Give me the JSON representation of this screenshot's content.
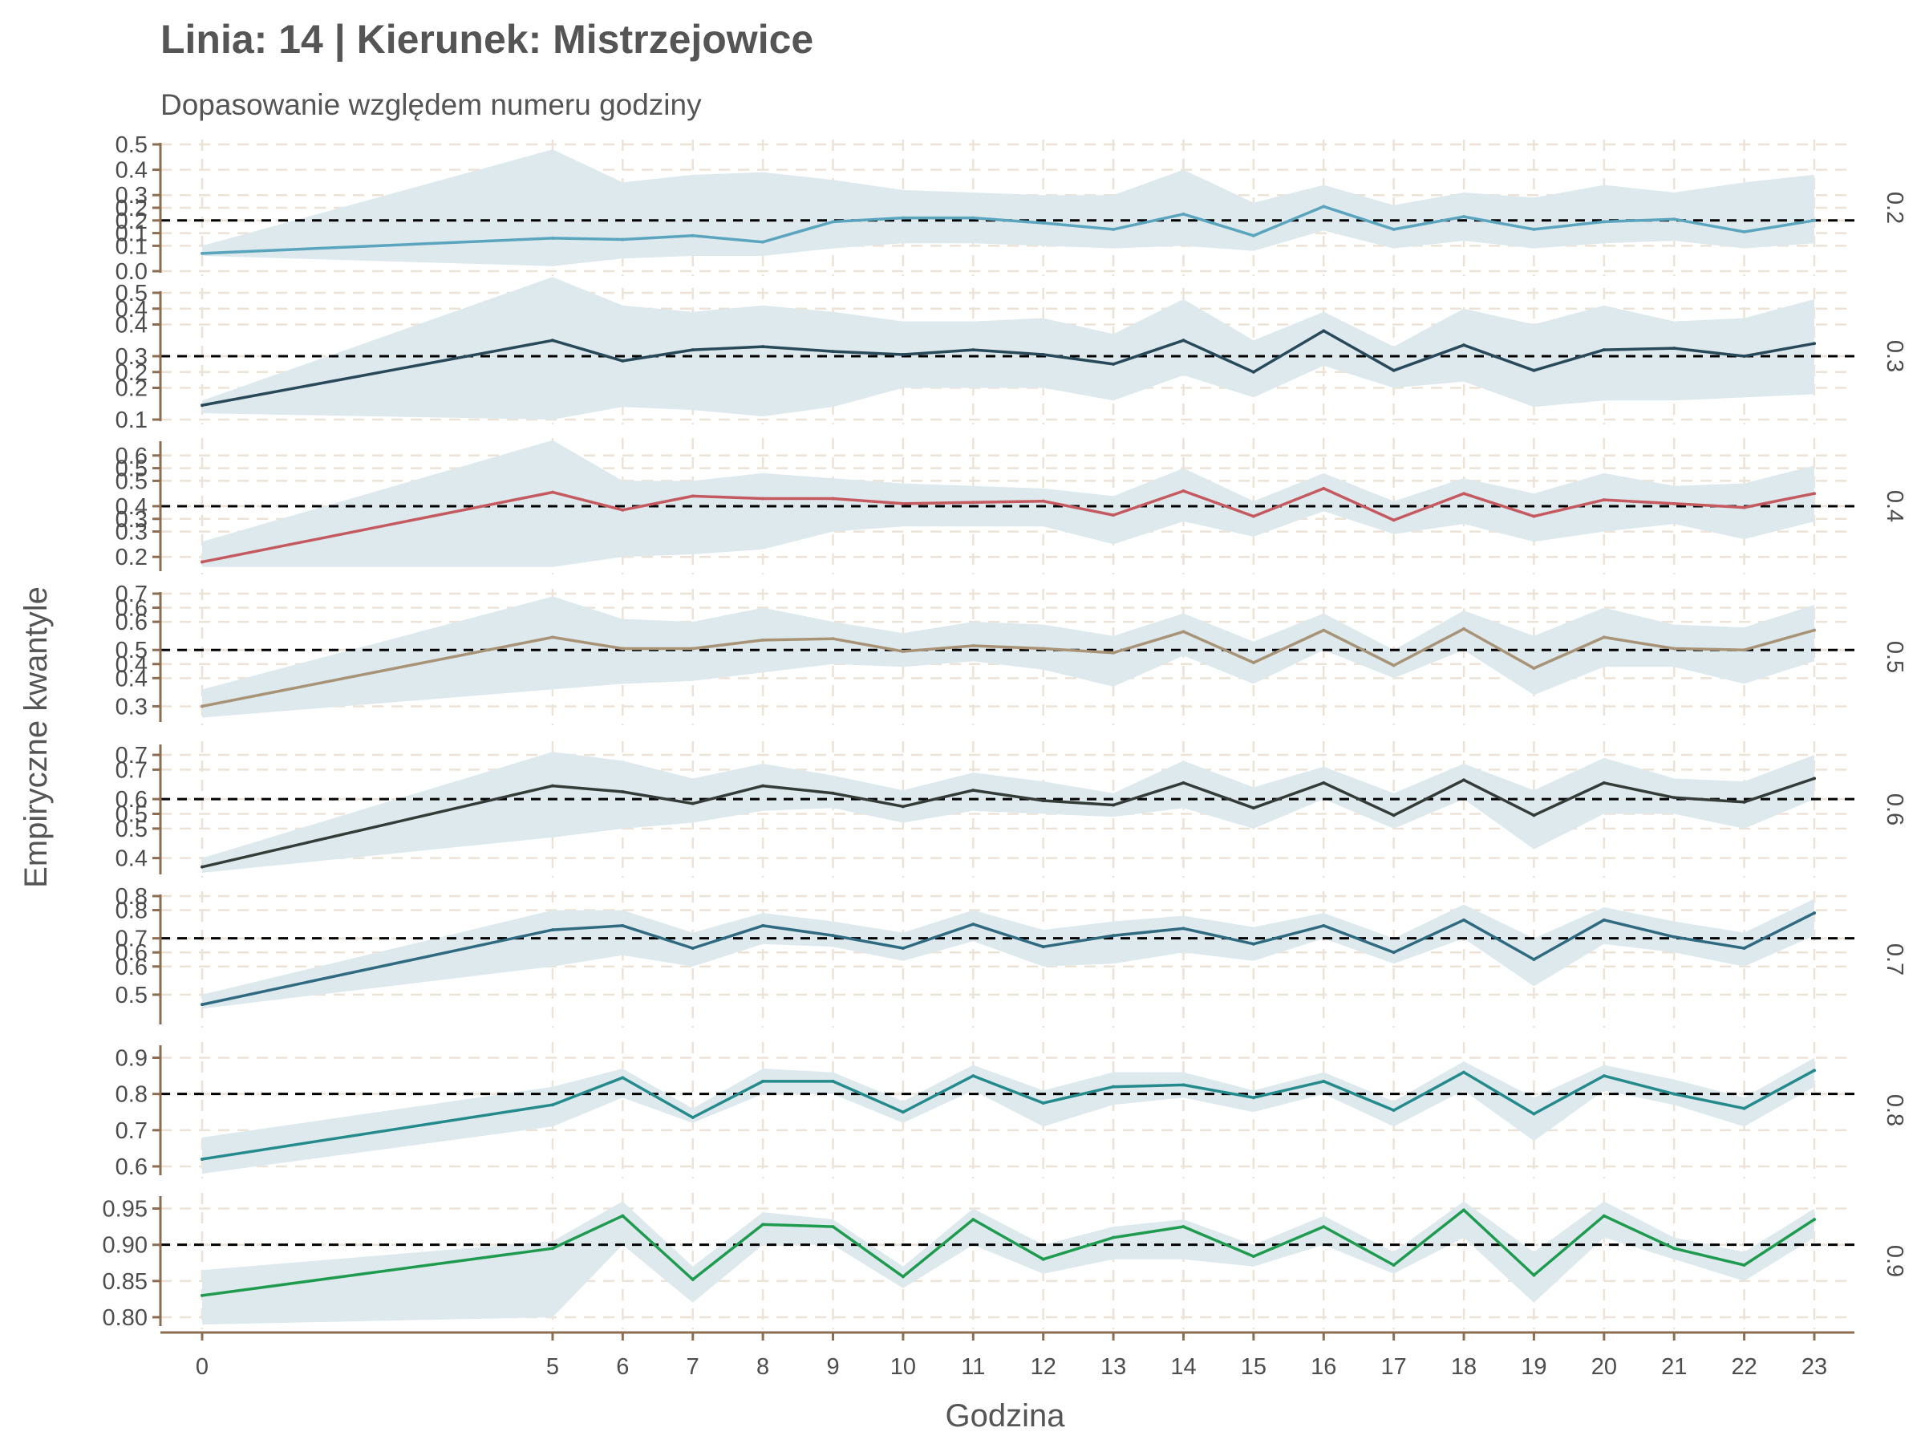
{
  "chart_data": {
    "type": "line",
    "title": "Linia: 14 | Kierunek: Mistrzejowice",
    "subtitle": "Dopasowanie względem numeru godziny",
    "xlabel": "Godzina",
    "ylabel": "Empiryczne kwantyle",
    "x": [
      0,
      5,
      6,
      7,
      8,
      9,
      10,
      11,
      12,
      13,
      14,
      15,
      16,
      17,
      18,
      19,
      20,
      21,
      22,
      23
    ],
    "x_ticks": [
      "0",
      "5",
      "6",
      "7",
      "8",
      "9",
      "10",
      "11",
      "12",
      "13",
      "14",
      "15",
      "16",
      "17",
      "18",
      "19",
      "20",
      "21",
      "22",
      "23"
    ],
    "xlim": [
      0,
      23
    ],
    "grid": true,
    "band_color": "#dde9ed",
    "panels": [
      {
        "strip": "0.2",
        "reference": 0.2,
        "ylim": [
          0.0,
          0.5
        ],
        "color": "#5aa5bd",
        "y_ticks": [
          "0.0",
          "0.1",
          "0.1",
          "0.2",
          "0.2",
          "0.3",
          "0.4",
          "0.5"
        ],
        "y_tick_values": [
          0.0,
          0.1,
          0.15,
          0.2,
          0.25,
          0.3,
          0.4,
          0.5
        ],
        "values": [
          0.07,
          0.13,
          0.125,
          0.14,
          0.115,
          0.195,
          0.21,
          0.21,
          0.19,
          0.165,
          0.225,
          0.14,
          0.255,
          0.165,
          0.215,
          0.165,
          0.195,
          0.205,
          0.155,
          0.2
        ],
        "lower": [
          0.06,
          0.02,
          0.05,
          0.06,
          0.06,
          0.09,
          0.11,
          0.11,
          0.1,
          0.09,
          0.1,
          0.08,
          0.16,
          0.09,
          0.12,
          0.09,
          0.11,
          0.12,
          0.09,
          0.11
        ],
        "upper": [
          0.1,
          0.48,
          0.35,
          0.38,
          0.39,
          0.36,
          0.32,
          0.31,
          0.3,
          0.3,
          0.4,
          0.27,
          0.34,
          0.26,
          0.31,
          0.29,
          0.34,
          0.31,
          0.35,
          0.38
        ]
      },
      {
        "strip": "0.3",
        "reference": 0.3,
        "ylim": [
          0.1,
          0.5
        ],
        "color": "#284959",
        "y_ticks": [
          "0.1",
          "0.2",
          "0.2",
          "0.3",
          "0.4",
          "0.4",
          "0.5"
        ],
        "y_tick_values": [
          0.1,
          0.2,
          0.25,
          0.3,
          0.4,
          0.45,
          0.5
        ],
        "values": [
          0.145,
          0.35,
          0.285,
          0.32,
          0.33,
          0.315,
          0.305,
          0.32,
          0.305,
          0.275,
          0.35,
          0.25,
          0.38,
          0.255,
          0.335,
          0.255,
          0.32,
          0.325,
          0.3,
          0.34
        ],
        "lower": [
          0.12,
          0.1,
          0.14,
          0.13,
          0.11,
          0.14,
          0.2,
          0.2,
          0.2,
          0.16,
          0.24,
          0.17,
          0.27,
          0.2,
          0.22,
          0.14,
          0.16,
          0.16,
          0.17,
          0.18
        ],
        "upper": [
          0.16,
          0.55,
          0.46,
          0.44,
          0.46,
          0.44,
          0.41,
          0.41,
          0.42,
          0.37,
          0.48,
          0.35,
          0.44,
          0.33,
          0.45,
          0.4,
          0.46,
          0.41,
          0.42,
          0.48
        ]
      },
      {
        "strip": "0.4",
        "reference": 0.4,
        "ylim": [
          0.15,
          0.65
        ],
        "color": "#c45a60",
        "y_ticks": [
          "0.2",
          "0.3",
          "0.3",
          "0.4",
          "0.5",
          "0.5",
          "0.6"
        ],
        "y_tick_values": [
          0.2,
          0.3,
          0.35,
          0.4,
          0.5,
          0.55,
          0.6
        ],
        "values": [
          0.18,
          0.455,
          0.385,
          0.44,
          0.43,
          0.43,
          0.41,
          0.415,
          0.42,
          0.365,
          0.46,
          0.36,
          0.47,
          0.345,
          0.45,
          0.36,
          0.425,
          0.41,
          0.395,
          0.45
        ],
        "lower": [
          0.16,
          0.16,
          0.2,
          0.21,
          0.23,
          0.3,
          0.32,
          0.32,
          0.32,
          0.25,
          0.34,
          0.28,
          0.38,
          0.29,
          0.33,
          0.26,
          0.3,
          0.33,
          0.27,
          0.34
        ],
        "upper": [
          0.26,
          0.66,
          0.5,
          0.5,
          0.53,
          0.51,
          0.49,
          0.48,
          0.47,
          0.44,
          0.55,
          0.42,
          0.53,
          0.42,
          0.51,
          0.45,
          0.53,
          0.48,
          0.49,
          0.56
        ]
      },
      {
        "strip": "0.5",
        "reference": 0.5,
        "ylim": [
          0.25,
          0.7
        ],
        "color": "#a89377",
        "y_ticks": [
          "0.3",
          "0.4",
          "0.4",
          "0.5",
          "0.6",
          "0.6",
          "0.7"
        ],
        "y_tick_values": [
          0.3,
          0.4,
          0.45,
          0.5,
          0.6,
          0.65,
          0.7
        ],
        "values": [
          0.3,
          0.545,
          0.505,
          0.505,
          0.535,
          0.54,
          0.495,
          0.515,
          0.505,
          0.49,
          0.565,
          0.455,
          0.57,
          0.445,
          0.575,
          0.435,
          0.545,
          0.505,
          0.5,
          0.57
        ],
        "lower": [
          0.26,
          0.36,
          0.38,
          0.39,
          0.42,
          0.45,
          0.44,
          0.46,
          0.43,
          0.37,
          0.48,
          0.38,
          0.5,
          0.4,
          0.5,
          0.34,
          0.44,
          0.44,
          0.38,
          0.46
        ],
        "upper": [
          0.36,
          0.69,
          0.61,
          0.6,
          0.65,
          0.6,
          0.56,
          0.6,
          0.59,
          0.55,
          0.63,
          0.53,
          0.63,
          0.5,
          0.64,
          0.55,
          0.65,
          0.59,
          0.58,
          0.66
        ]
      },
      {
        "strip": "0.6",
        "reference": 0.6,
        "ylim": [
          0.35,
          0.78
        ],
        "color": "#353b37",
        "y_ticks": [
          "0.4",
          "0.5",
          "0.5",
          "0.6",
          "0.7",
          "0.7"
        ],
        "y_tick_values": [
          0.4,
          0.5,
          0.55,
          0.6,
          0.7,
          0.75
        ],
        "values": [
          0.37,
          0.645,
          0.625,
          0.585,
          0.645,
          0.62,
          0.575,
          0.63,
          0.595,
          0.58,
          0.655,
          0.57,
          0.655,
          0.545,
          0.665,
          0.545,
          0.655,
          0.605,
          0.59,
          0.67
        ],
        "lower": [
          0.35,
          0.47,
          0.5,
          0.52,
          0.56,
          0.57,
          0.52,
          0.56,
          0.55,
          0.54,
          0.57,
          0.5,
          0.6,
          0.5,
          0.6,
          0.43,
          0.55,
          0.55,
          0.5,
          0.6
        ],
        "upper": [
          0.4,
          0.76,
          0.73,
          0.67,
          0.72,
          0.68,
          0.63,
          0.69,
          0.66,
          0.62,
          0.73,
          0.64,
          0.71,
          0.62,
          0.72,
          0.63,
          0.74,
          0.67,
          0.66,
          0.75
        ]
      },
      {
        "strip": "0.7",
        "reference": 0.7,
        "ylim": [
          0.4,
          0.85
        ],
        "color": "#2f6a80",
        "y_ticks": [
          "0.5",
          "0.6",
          "0.6",
          "0.7",
          "0.8",
          "0.8"
        ],
        "y_tick_values": [
          0.5,
          0.6,
          0.65,
          0.7,
          0.8,
          0.85
        ],
        "values": [
          0.465,
          0.73,
          0.745,
          0.665,
          0.745,
          0.71,
          0.665,
          0.75,
          0.67,
          0.71,
          0.735,
          0.68,
          0.745,
          0.65,
          0.765,
          0.625,
          0.765,
          0.705,
          0.665,
          0.79
        ],
        "lower": [
          0.45,
          0.6,
          0.64,
          0.6,
          0.68,
          0.67,
          0.62,
          0.69,
          0.6,
          0.61,
          0.65,
          0.62,
          0.7,
          0.61,
          0.7,
          0.53,
          0.68,
          0.65,
          0.6,
          0.71
        ],
        "upper": [
          0.5,
          0.8,
          0.8,
          0.72,
          0.79,
          0.76,
          0.72,
          0.8,
          0.73,
          0.76,
          0.78,
          0.74,
          0.79,
          0.7,
          0.82,
          0.7,
          0.81,
          0.76,
          0.72,
          0.84
        ]
      },
      {
        "strip": "0.8",
        "reference": 0.8,
        "ylim": [
          0.58,
          0.93
        ],
        "color": "#258a8c",
        "y_ticks": [
          "0.6",
          "0.7",
          "0.8",
          "0.9"
        ],
        "y_tick_values": [
          0.6,
          0.7,
          0.8,
          0.9
        ],
        "values": [
          0.62,
          0.77,
          0.845,
          0.735,
          0.835,
          0.835,
          0.75,
          0.85,
          0.775,
          0.82,
          0.825,
          0.79,
          0.835,
          0.755,
          0.86,
          0.745,
          0.85,
          0.8,
          0.76,
          0.865
        ],
        "lower": [
          0.58,
          0.71,
          0.79,
          0.72,
          0.8,
          0.8,
          0.72,
          0.81,
          0.71,
          0.77,
          0.79,
          0.75,
          0.8,
          0.71,
          0.81,
          0.67,
          0.81,
          0.77,
          0.71,
          0.82
        ],
        "upper": [
          0.68,
          0.82,
          0.87,
          0.76,
          0.87,
          0.86,
          0.78,
          0.88,
          0.81,
          0.86,
          0.86,
          0.81,
          0.86,
          0.78,
          0.89,
          0.79,
          0.88,
          0.84,
          0.79,
          0.9
        ]
      },
      {
        "strip": "0.9",
        "reference": 0.9,
        "ylim": [
          0.79,
          0.965
        ],
        "color": "#1e9b4f",
        "y_ticks": [
          "0.80",
          "0.85",
          "0.90",
          "0.95"
        ],
        "y_tick_values": [
          0.8,
          0.85,
          0.9,
          0.95
        ],
        "values": [
          0.83,
          0.895,
          0.94,
          0.852,
          0.928,
          0.925,
          0.856,
          0.935,
          0.88,
          0.91,
          0.925,
          0.884,
          0.925,
          0.872,
          0.948,
          0.858,
          0.94,
          0.895,
          0.872,
          0.935
        ],
        "lower": [
          0.79,
          0.8,
          0.9,
          0.82,
          0.9,
          0.9,
          0.84,
          0.9,
          0.86,
          0.88,
          0.88,
          0.87,
          0.9,
          0.86,
          0.91,
          0.82,
          0.91,
          0.88,
          0.85,
          0.91
        ],
        "upper": [
          0.865,
          0.905,
          0.96,
          0.87,
          0.945,
          0.935,
          0.87,
          0.95,
          0.9,
          0.925,
          0.935,
          0.9,
          0.94,
          0.89,
          0.96,
          0.89,
          0.96,
          0.91,
          0.89,
          0.95
        ]
      }
    ]
  }
}
